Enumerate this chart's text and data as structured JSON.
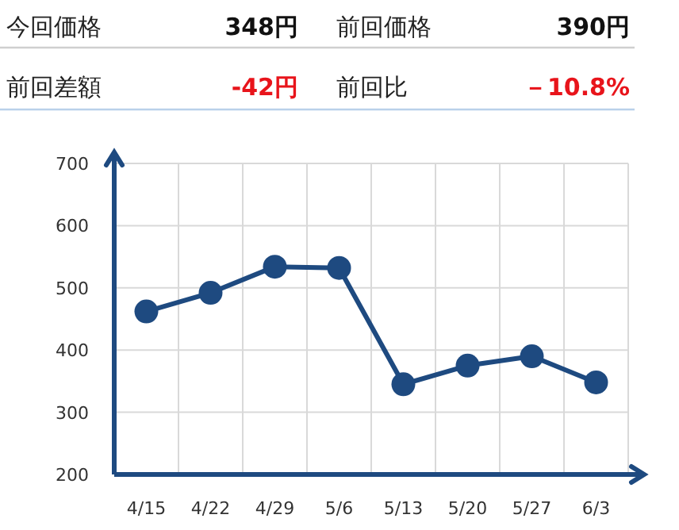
{
  "chart_data": {
    "type": "line",
    "annotations": [
      "今回価格",
      "348円",
      "前回価格",
      "390円",
      "前回差額",
      "-42円",
      "前回比",
      "－10.8%"
    ],
    "categories": [
      "4/15",
      "4/22",
      "4/29",
      "5/6",
      "5/13",
      "5/20",
      "5/27",
      "6/3"
    ],
    "series": [
      {
        "color": "#1e4a80",
        "values": [
          462,
          492,
          534,
          532,
          345,
          375,
          390,
          348
        ]
      }
    ],
    "ylim": [
      200,
      700
    ],
    "yticks": [
      200,
      300,
      400,
      500,
      600,
      700
    ],
    "grid": true,
    "marker": "circle",
    "line_style": "solid"
  }
}
